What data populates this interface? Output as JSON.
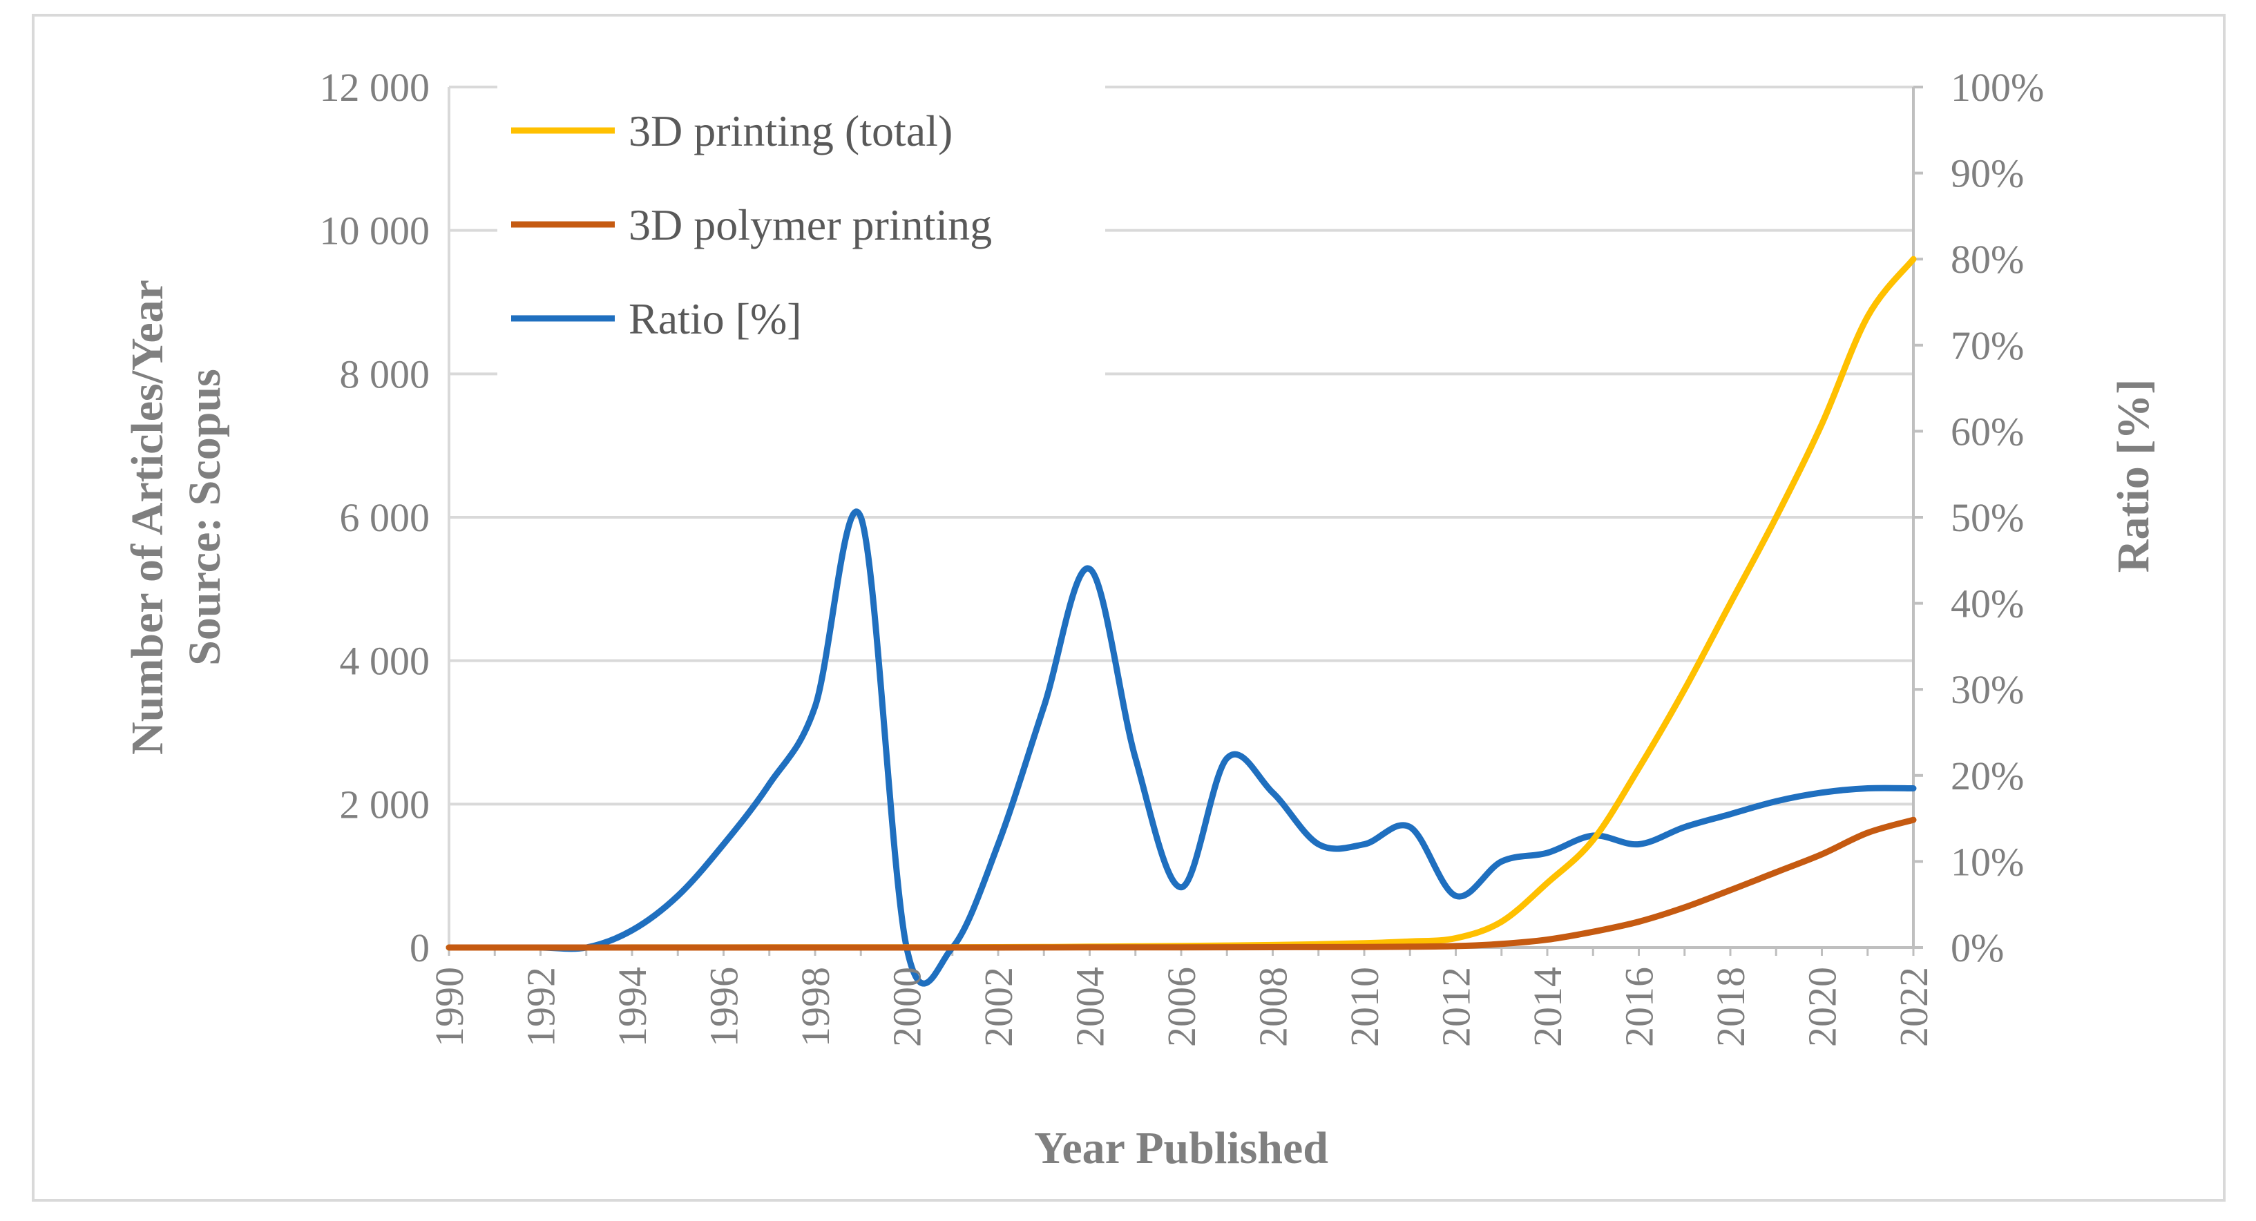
{
  "chart_data": {
    "type": "line",
    "xlabel": "Year Published",
    "ylabel_left_line1": "Number of Articles/Year",
    "ylabel_left_line2": "Source: Scopus",
    "ylabel_right": "Ratio [%]",
    "x_ticks": [
      "1990",
      "1992",
      "1994",
      "1996",
      "1998",
      "2000",
      "2002",
      "2004",
      "2006",
      "2008",
      "2010",
      "2012",
      "2014",
      "2016",
      "2018",
      "2020",
      "2022"
    ],
    "y_left_ticks": [
      "0",
      "2 000",
      "4 000",
      "6 000",
      "8 000",
      "10 000",
      "12 000"
    ],
    "y_right_ticks": [
      "0%",
      "10%",
      "20%",
      "30%",
      "40%",
      "50%",
      "60%",
      "70%",
      "80%",
      "90%",
      "100%"
    ],
    "xlim": [
      1990,
      2022
    ],
    "ylim_left": [
      0,
      12000
    ],
    "ylim_right": [
      0,
      100
    ],
    "grid": "horizontal",
    "legend_position": "top-left",
    "series": [
      {
        "name": "3D printing (total)",
        "axis": "left",
        "color": "#ffc000",
        "x": [
          1990,
          1991,
          1992,
          1993,
          1994,
          1995,
          1996,
          1997,
          1998,
          1999,
          2000,
          2001,
          2002,
          2003,
          2004,
          2005,
          2006,
          2007,
          2008,
          2009,
          2010,
          2011,
          2012,
          2013,
          2014,
          2015,
          2016,
          2017,
          2018,
          2019,
          2020,
          2021,
          2022
        ],
        "values": [
          0,
          0,
          0,
          0,
          1,
          1,
          1,
          2,
          3,
          3,
          3,
          3,
          5,
          7,
          12,
          16,
          22,
          28,
          35,
          45,
          60,
          85,
          130,
          360,
          900,
          1500,
          2500,
          3600,
          4800,
          6000,
          7300,
          8800,
          9600
        ]
      },
      {
        "name": "3D polymer printing",
        "axis": "left",
        "color": "#c55a11",
        "x": [
          1990,
          1991,
          1992,
          1993,
          1994,
          1995,
          1996,
          1997,
          1998,
          1999,
          2000,
          2001,
          2002,
          2003,
          2004,
          2005,
          2006,
          2007,
          2008,
          2009,
          2010,
          2011,
          2012,
          2013,
          2014,
          2015,
          2016,
          2017,
          2018,
          2019,
          2020,
          2021,
          2022
        ],
        "values": [
          0,
          0,
          0,
          0,
          0,
          0,
          0,
          0,
          0,
          0,
          0,
          0,
          0,
          1,
          2,
          2,
          3,
          4,
          5,
          6,
          8,
          12,
          20,
          50,
          110,
          220,
          360,
          560,
          800,
          1050,
          1300,
          1600,
          1780
        ]
      },
      {
        "name": "Ratio [%]",
        "axis": "right",
        "color": "#1f6fbf",
        "x": [
          1990,
          1991,
          1992,
          1993,
          1994,
          1995,
          1996,
          1997,
          1998,
          1999,
          2000,
          2001,
          2002,
          2003,
          2004,
          2005,
          2006,
          2007,
          2008,
          2009,
          2010,
          2011,
          2012,
          2013,
          2014,
          2015,
          2016,
          2017,
          2018,
          2019,
          2020,
          2021,
          2022
        ],
        "values": [
          0,
          0,
          0,
          0,
          2,
          6,
          12,
          19,
          28,
          50,
          0,
          0,
          12,
          28,
          44,
          22,
          7,
          22,
          18,
          12,
          12,
          14,
          6,
          10,
          11,
          13,
          12,
          14,
          15.5,
          17,
          18,
          18.5,
          18.5
        ]
      }
    ]
  }
}
